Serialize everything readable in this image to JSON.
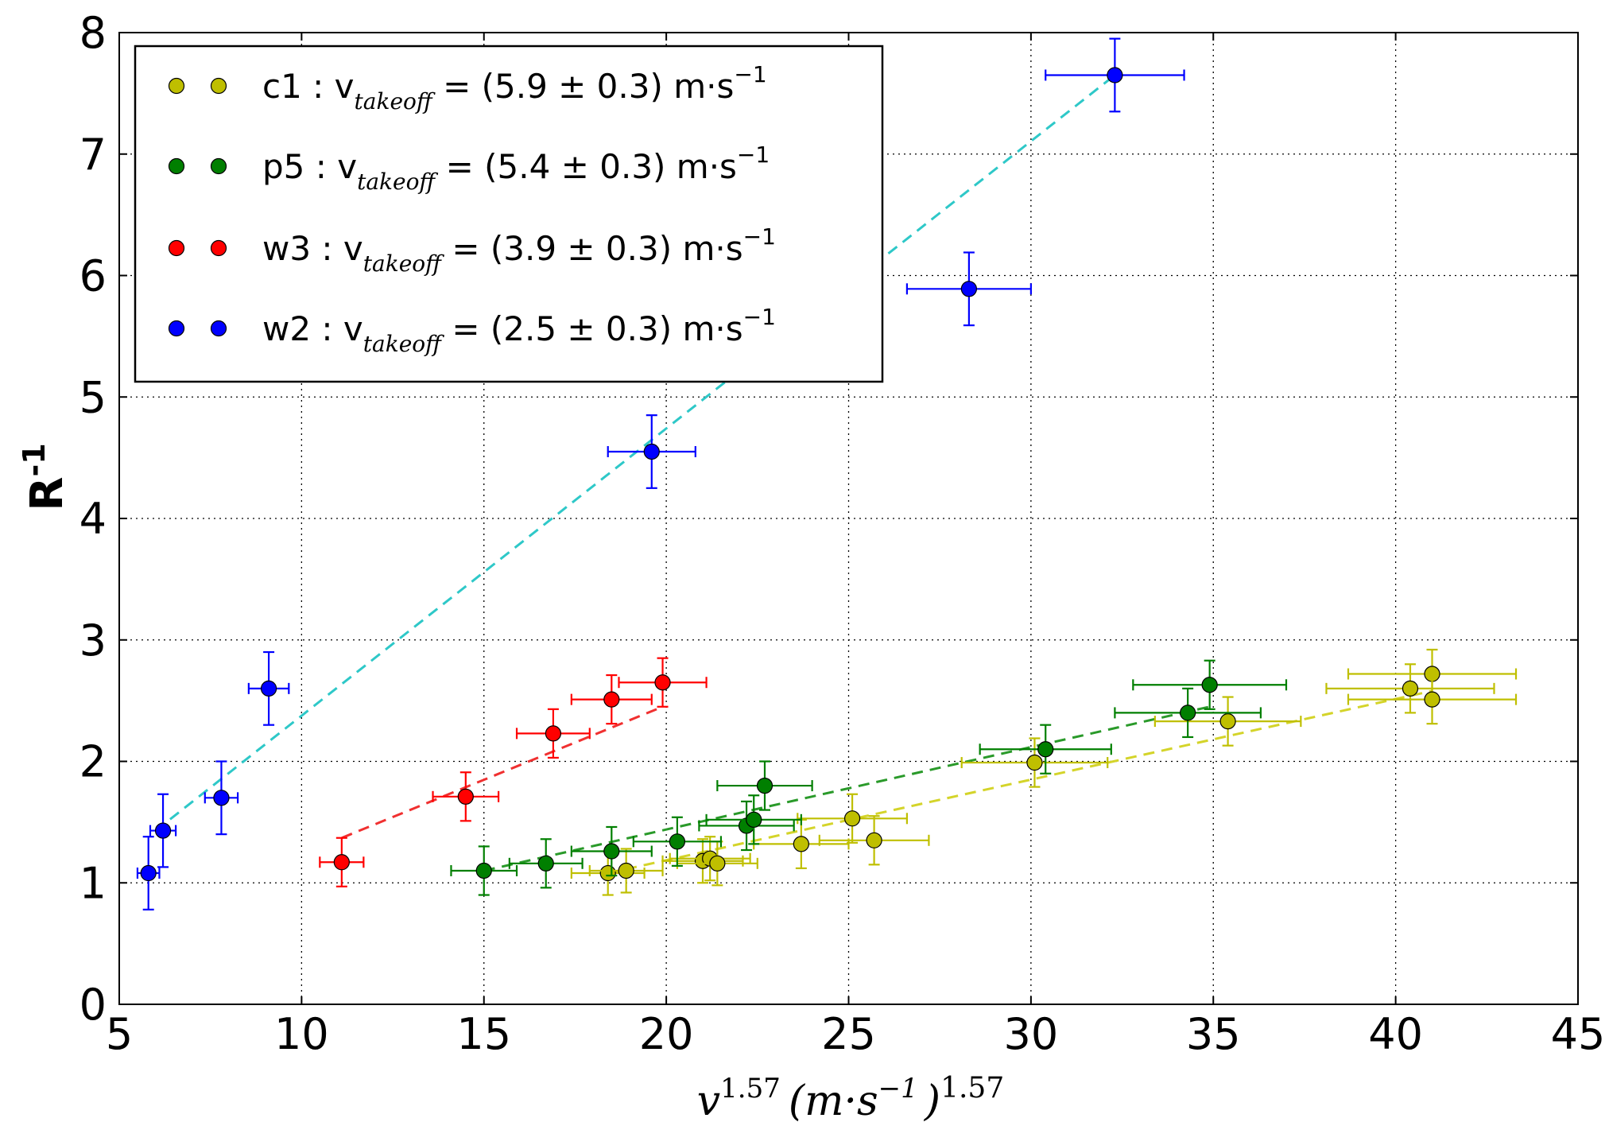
{
  "chart_data": {
    "type": "scatter",
    "title": "",
    "xlabel": "v",
    "xlabel_sup": "1.57",
    "xlabel_unit": "(m·s",
    "xlabel_unit_sup": "−1",
    "xlabel_close": ")",
    "xlabel_close_sup": "1.57",
    "ylabel": "R",
    "ylabel_sup": "-1",
    "xlim": [
      5,
      45
    ],
    "ylim": [
      0,
      8
    ],
    "xticks": [
      5,
      10,
      15,
      20,
      25,
      30,
      35,
      40,
      45
    ],
    "yticks": [
      0,
      1,
      2,
      3,
      4,
      5,
      6,
      7,
      8
    ],
    "grid": true,
    "legend_position": "top-left",
    "series": [
      {
        "name": "c1",
        "legend_main": "c1 : v",
        "legend_sub": "takeoff",
        "legend_value": " = (5.9 ± 0.3) m·s",
        "legend_sup": "−1",
        "color": "#bfbf00",
        "line_color": "#d4d42a",
        "points": [
          {
            "x": 18.4,
            "y": 1.08,
            "xerr": 1.0,
            "yerr": 0.18
          },
          {
            "x": 18.9,
            "y": 1.1,
            "xerr": 1.0,
            "yerr": 0.18
          },
          {
            "x": 21.0,
            "y": 1.18,
            "xerr": 1.1,
            "yerr": 0.18
          },
          {
            "x": 21.2,
            "y": 1.2,
            "xerr": 1.1,
            "yerr": 0.18
          },
          {
            "x": 21.4,
            "y": 1.16,
            "xerr": 1.1,
            "yerr": 0.18
          },
          {
            "x": 23.7,
            "y": 1.32,
            "xerr": 1.3,
            "yerr": 0.2
          },
          {
            "x": 25.1,
            "y": 1.53,
            "xerr": 1.5,
            "yerr": 0.2
          },
          {
            "x": 25.7,
            "y": 1.35,
            "xerr": 1.5,
            "yerr": 0.2
          },
          {
            "x": 30.1,
            "y": 1.99,
            "xerr": 2.0,
            "yerr": 0.2
          },
          {
            "x": 35.4,
            "y": 2.33,
            "xerr": 2.0,
            "yerr": 0.2
          },
          {
            "x": 40.4,
            "y": 2.6,
            "xerr": 2.3,
            "yerr": 0.2
          },
          {
            "x": 41.0,
            "y": 2.72,
            "xerr": 2.3,
            "yerr": 0.2
          },
          {
            "x": 41.0,
            "y": 2.51,
            "xerr": 2.3,
            "yerr": 0.2
          }
        ],
        "fit": [
          [
            18.4,
            1.08
          ],
          [
            41.0,
            2.58
          ]
        ]
      },
      {
        "name": "p5",
        "legend_main": "p5 : v",
        "legend_sub": "takeoff",
        "legend_value": " = (5.4 ± 0.3) m·s",
        "legend_sup": "−1",
        "color": "#007f00",
        "line_color": "#2a9a2a",
        "points": [
          {
            "x": 15.0,
            "y": 1.1,
            "xerr": 0.9,
            "yerr": 0.2
          },
          {
            "x": 16.7,
            "y": 1.16,
            "xerr": 1.0,
            "yerr": 0.2
          },
          {
            "x": 18.5,
            "y": 1.26,
            "xerr": 1.1,
            "yerr": 0.2
          },
          {
            "x": 20.3,
            "y": 1.34,
            "xerr": 1.2,
            "yerr": 0.2
          },
          {
            "x": 22.2,
            "y": 1.47,
            "xerr": 1.3,
            "yerr": 0.2
          },
          {
            "x": 22.4,
            "y": 1.52,
            "xerr": 1.3,
            "yerr": 0.2
          },
          {
            "x": 22.7,
            "y": 1.8,
            "xerr": 1.3,
            "yerr": 0.2
          },
          {
            "x": 30.4,
            "y": 2.1,
            "xerr": 1.8,
            "yerr": 0.2
          },
          {
            "x": 34.3,
            "y": 2.4,
            "xerr": 2.0,
            "yerr": 0.2
          },
          {
            "x": 34.9,
            "y": 2.63,
            "xerr": 2.1,
            "yerr": 0.2
          }
        ],
        "fit": [
          [
            15.0,
            1.1
          ],
          [
            34.9,
            2.45
          ]
        ]
      },
      {
        "name": "w3",
        "legend_main": "w3 : v",
        "legend_sub": "takeoff",
        "legend_value": " = (3.9 ± 0.3) m·s",
        "legend_sup": "−1",
        "color": "#ff0000",
        "line_color": "#f03030",
        "points": [
          {
            "x": 11.1,
            "y": 1.17,
            "xerr": 0.6,
            "yerr": 0.2
          },
          {
            "x": 14.5,
            "y": 1.71,
            "xerr": 0.9,
            "yerr": 0.2
          },
          {
            "x": 16.9,
            "y": 2.23,
            "xerr": 1.0,
            "yerr": 0.2
          },
          {
            "x": 18.5,
            "y": 2.51,
            "xerr": 1.1,
            "yerr": 0.2
          },
          {
            "x": 19.9,
            "y": 2.65,
            "xerr": 1.2,
            "yerr": 0.2
          }
        ],
        "fit": [
          [
            11.1,
            1.37
          ],
          [
            19.9,
            2.45
          ]
        ]
      },
      {
        "name": "w2",
        "legend_main": "w2 : v",
        "legend_sub": "takeoff",
        "legend_value": " = (2.5 ± 0.3) m·s",
        "legend_sup": "−1",
        "color": "#0000ff",
        "line_color": "#2ec8c8",
        "points": [
          {
            "x": 5.8,
            "y": 1.08,
            "xerr": 0.3,
            "yerr": 0.3
          },
          {
            "x": 6.2,
            "y": 1.43,
            "xerr": 0.35,
            "yerr": 0.3
          },
          {
            "x": 7.8,
            "y": 1.7,
            "xerr": 0.45,
            "yerr": 0.3
          },
          {
            "x": 9.1,
            "y": 2.6,
            "xerr": 0.55,
            "yerr": 0.3
          },
          {
            "x": 19.6,
            "y": 4.55,
            "xerr": 1.2,
            "yerr": 0.3
          },
          {
            "x": 28.3,
            "y": 5.89,
            "xerr": 1.7,
            "yerr": 0.3
          },
          {
            "x": 32.3,
            "y": 7.65,
            "xerr": 1.9,
            "yerr": 0.3
          }
        ],
        "fit": [
          [
            6.0,
            1.43
          ],
          [
            32.3,
            7.65
          ]
        ]
      }
    ]
  }
}
